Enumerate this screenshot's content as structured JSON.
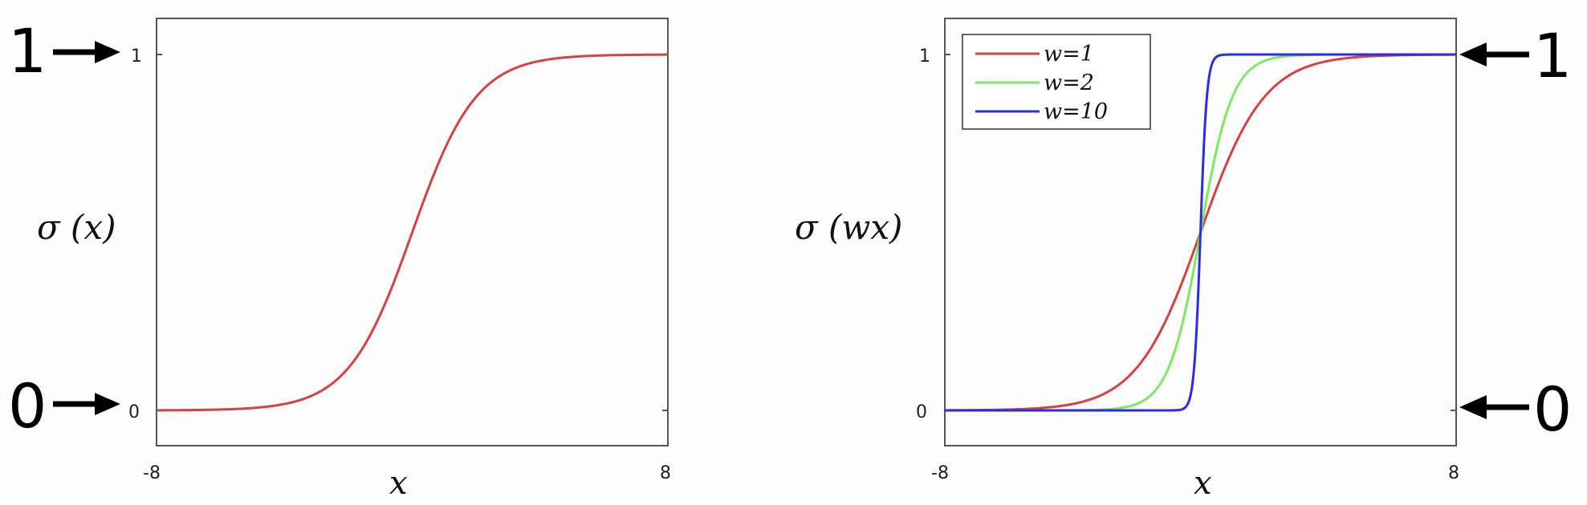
{
  "chart_data": [
    {
      "type": "line",
      "title": "",
      "ylabel": "σ (x)",
      "xlabel": "x",
      "xlim": [
        -8,
        8
      ],
      "ylim": [
        0,
        1
      ],
      "x_ticks": [
        "-8",
        "8"
      ],
      "y_ticks": [
        "0",
        "1"
      ],
      "grid": false,
      "legend": "none",
      "series": [
        {
          "w": 1,
          "color": "#d94040"
        }
      ],
      "annotations": [
        {
          "text": "1",
          "points_to": 1,
          "side": "left"
        },
        {
          "text": "0",
          "points_to": 0,
          "side": "left"
        }
      ]
    },
    {
      "type": "line",
      "title": "",
      "ylabel": "σ (wx)",
      "xlabel": "x",
      "xlim": [
        -8,
        8
      ],
      "ylim": [
        0,
        1
      ],
      "x_ticks": [
        "-8",
        "8"
      ],
      "y_ticks": [
        "0",
        "1"
      ],
      "grid": false,
      "legend": "top-left",
      "series": [
        {
          "name": "w=1",
          "w": 1,
          "color": "#d94040"
        },
        {
          "name": "w=2",
          "w": 2,
          "color": "#7ee860"
        },
        {
          "name": "w=10",
          "w": 10,
          "color": "#2b2bea"
        }
      ],
      "annotations": [
        {
          "text": "1",
          "points_to": 1,
          "side": "right"
        },
        {
          "text": "0",
          "points_to": 0,
          "side": "right"
        }
      ]
    }
  ]
}
